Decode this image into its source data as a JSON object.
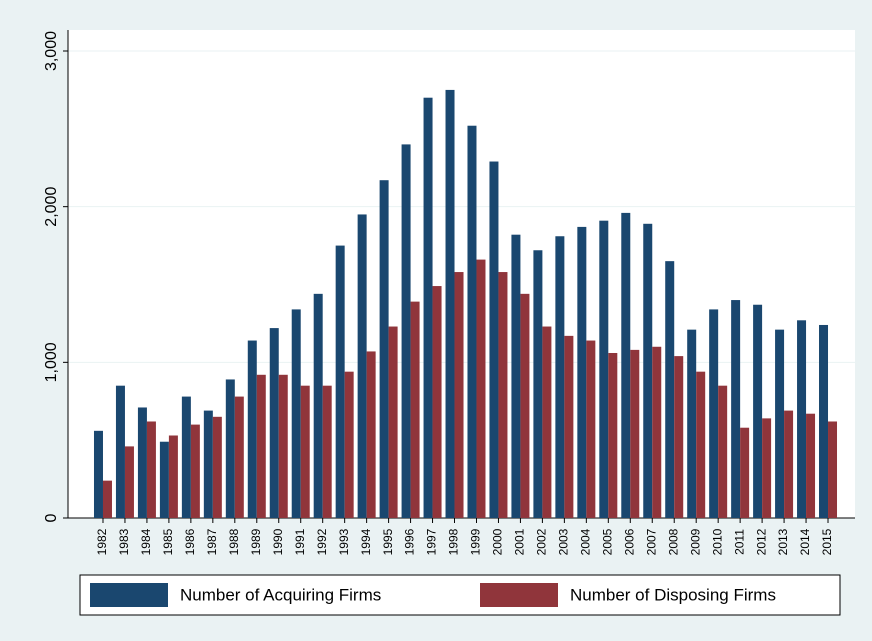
{
  "chart_data": {
    "type": "bar",
    "categories": [
      "1982",
      "1983",
      "1984",
      "1985",
      "1986",
      "1987",
      "1988",
      "1989",
      "1990",
      "1991",
      "1992",
      "1993",
      "1994",
      "1995",
      "1996",
      "1997",
      "1998",
      "1999",
      "2000",
      "2001",
      "2002",
      "2003",
      "2004",
      "2005",
      "2006",
      "2007",
      "2008",
      "2009",
      "2010",
      "2011",
      "2012",
      "2013",
      "2014",
      "2015"
    ],
    "series": [
      {
        "name": "Number of Acquiring Firms",
        "color": "#1a476f",
        "values": [
          560,
          850,
          710,
          490,
          780,
          690,
          890,
          1140,
          1220,
          1340,
          1440,
          1750,
          1950,
          2170,
          2400,
          2700,
          2750,
          2520,
          2290,
          1820,
          1720,
          1810,
          1870,
          1910,
          1960,
          1890,
          1650,
          1210,
          1340,
          1400,
          1370,
          1210,
          1270,
          1240
        ]
      },
      {
        "name": "Number of Disposing Firms",
        "color": "#90353b",
        "values": [
          240,
          460,
          620,
          530,
          600,
          650,
          780,
          920,
          920,
          850,
          850,
          940,
          1070,
          1230,
          1390,
          1490,
          1580,
          1660,
          1580,
          1440,
          1230,
          1170,
          1140,
          1060,
          1080,
          1100,
          1040,
          940,
          850,
          580,
          640,
          690,
          670,
          620
        ]
      }
    ],
    "ylim": [
      0,
      3000
    ],
    "yticks": [
      0,
      {
        "value": 1000,
        "label": "1,000"
      },
      {
        "value": 2000,
        "label": "2,000"
      },
      {
        "value": 3000,
        "label": "3,000"
      }
    ],
    "grid": true
  }
}
